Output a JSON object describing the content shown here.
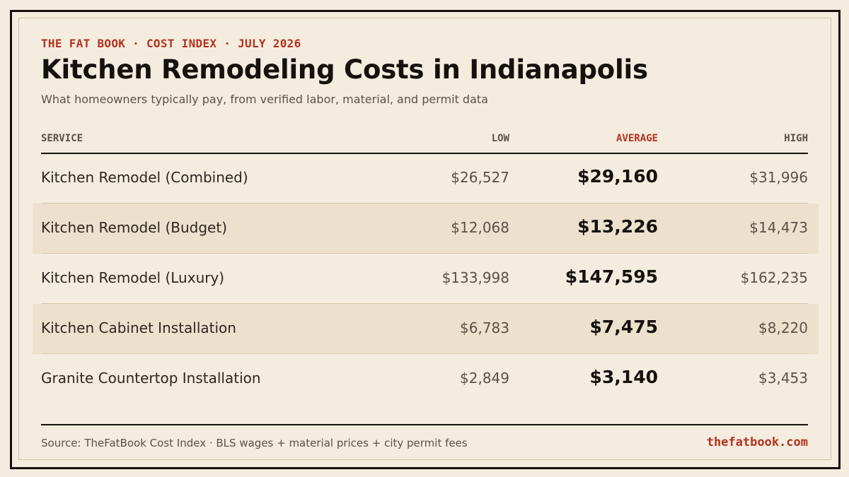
{
  "header": {
    "eyebrow": "THE FAT BOOK · COST INDEX · JULY 2026",
    "title": "Kitchen Remodeling Costs in Indianapolis",
    "subtitle": "What homeowners typically pay, from verified labor, material, and permit data"
  },
  "table": {
    "columns": {
      "service": "SERVICE",
      "low": "LOW",
      "average": "AVERAGE",
      "high": "HIGH"
    },
    "rows": [
      {
        "service": "Kitchen Remodel (Combined)",
        "low": "$26,527",
        "average": "$29,160",
        "high": "$31,996"
      },
      {
        "service": "Kitchen Remodel (Budget)",
        "low": "$12,068",
        "average": "$13,226",
        "high": "$14,473"
      },
      {
        "service": "Kitchen Remodel (Luxury)",
        "low": "$133,998",
        "average": "$147,595",
        "high": "$162,235"
      },
      {
        "service": "Kitchen Cabinet Installation",
        "low": "$6,783",
        "average": "$7,475",
        "high": "$8,220"
      },
      {
        "service": "Granite Countertop Installation",
        "low": "$2,849",
        "average": "$3,140",
        "high": "$3,453"
      }
    ]
  },
  "footer": {
    "source": "Source: TheFatBook Cost Index · BLS wages + material prices + city permit fees",
    "site": "thefatbook.com"
  },
  "colors": {
    "background": "#f4ecdf",
    "accent": "#b3321f",
    "ink": "#15110d",
    "row_shade": "#ece1cd"
  }
}
